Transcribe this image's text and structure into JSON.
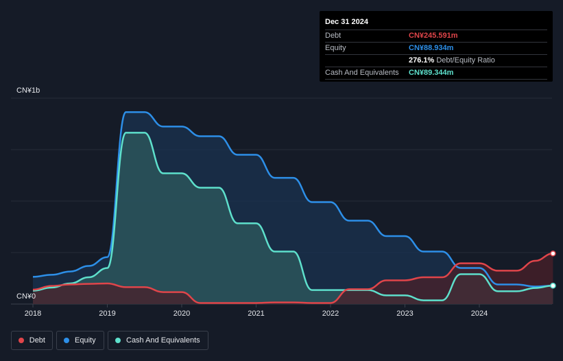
{
  "chart_data": {
    "type": "area",
    "y_unit_label": "CN¥1b",
    "y_zero_label": "CN¥0",
    "ylim": [
      0,
      1000
    ],
    "xlim": [
      2018.0,
      2025.0
    ],
    "x_ticks": [
      "2018",
      "2019",
      "2020",
      "2021",
      "2022",
      "2023",
      "2024"
    ],
    "grid": true,
    "legend_position": "bottom-left",
    "series": [
      {
        "name": "Equity",
        "color": "#2d8fe8",
        "fill": "#1a3350",
        "x": [
          2018.0,
          2018.25,
          2018.5,
          2018.75,
          2019.0,
          2019.25,
          2019.5,
          2019.75,
          2020.0,
          2020.25,
          2020.5,
          2020.75,
          2021.0,
          2021.25,
          2021.5,
          2021.75,
          2022.0,
          2022.25,
          2022.5,
          2022.75,
          2023.0,
          2023.25,
          2023.5,
          2023.75,
          2024.0,
          2024.25,
          2024.5,
          2024.75,
          2024.99
        ],
        "values": [
          132,
          142,
          158,
          185,
          228,
          932,
          932,
          862,
          862,
          815,
          815,
          725,
          725,
          613,
          613,
          495,
          495,
          405,
          405,
          330,
          330,
          255,
          255,
          175,
          175,
          95,
          95,
          85,
          89
        ]
      },
      {
        "name": "Cash And Equivalents",
        "color": "#5ee0cc",
        "fill": "#2d5a5e",
        "x": [
          2018.0,
          2018.25,
          2018.5,
          2018.75,
          2019.0,
          2019.25,
          2019.5,
          2019.75,
          2020.0,
          2020.25,
          2020.5,
          2020.75,
          2021.0,
          2021.25,
          2021.5,
          2021.75,
          2022.0,
          2022.25,
          2022.5,
          2022.75,
          2023.0,
          2023.25,
          2023.5,
          2023.75,
          2024.0,
          2024.25,
          2024.5,
          2024.75,
          2024.99
        ],
        "values": [
          65,
          80,
          100,
          130,
          175,
          832,
          832,
          635,
          635,
          565,
          565,
          392,
          392,
          255,
          255,
          68,
          68,
          68,
          68,
          42,
          42,
          18,
          18,
          145,
          145,
          62,
          62,
          78,
          89
        ]
      },
      {
        "name": "Debt",
        "color": "#e0454a",
        "fill": "#4a2029",
        "x": [
          2018.0,
          2018.25,
          2018.5,
          2018.75,
          2019.0,
          2019.25,
          2019.5,
          2019.75,
          2020.0,
          2020.25,
          2020.5,
          2020.75,
          2021.0,
          2021.25,
          2021.5,
          2021.75,
          2022.0,
          2022.25,
          2022.5,
          2022.75,
          2023.0,
          2023.25,
          2023.5,
          2023.75,
          2024.0,
          2024.25,
          2024.5,
          2024.75,
          2024.99
        ],
        "values": [
          70,
          88,
          95,
          98,
          100,
          82,
          82,
          58,
          58,
          5,
          5,
          5,
          5,
          8,
          8,
          5,
          5,
          72,
          72,
          115,
          115,
          130,
          130,
          198,
          198,
          162,
          162,
          210,
          245.6
        ]
      }
    ],
    "tooltip": {
      "date": "Dec 31 2024",
      "rows": [
        {
          "label": "Debt",
          "value": "CN¥245.591m",
          "color": "#e0454a"
        },
        {
          "label": "Equity",
          "value": "CN¥88.934m",
          "color": "#2d8fe8"
        },
        {
          "label": "",
          "value": "276.1%",
          "suffix": "Debt/Equity Ratio",
          "color": "#ffffff"
        },
        {
          "label": "Cash And Equivalents",
          "value": "CN¥89.344m",
          "color": "#5ee0cc"
        }
      ]
    }
  },
  "legend": [
    {
      "label": "Debt",
      "color": "#e0454a"
    },
    {
      "label": "Equity",
      "color": "#2d8fe8"
    },
    {
      "label": "Cash And Equivalents",
      "color": "#5ee0cc"
    }
  ]
}
